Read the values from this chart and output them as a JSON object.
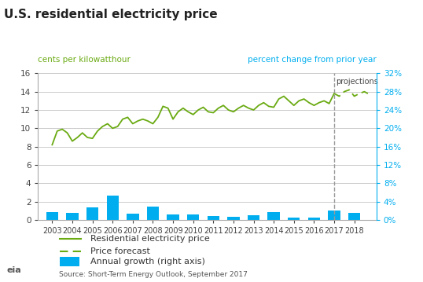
{
  "title": "U.S. residential electricity price",
  "left_ylabel": "cents per kilowatthour",
  "right_ylabel": "percent change from prior year",
  "source": "Source: Short-Term Energy Outlook, September 2017",
  "projection_label": "projections",
  "left_ylim": [
    0,
    16
  ],
  "right_ylim": [
    0,
    32
  ],
  "left_yticks": [
    0,
    2,
    4,
    6,
    8,
    10,
    12,
    14,
    16
  ],
  "right_yticks": [
    0,
    4,
    8,
    12,
    16,
    20,
    24,
    28,
    32
  ],
  "right_yticklabels": [
    "0%",
    "4%",
    "8%",
    "12%",
    "16%",
    "20%",
    "24%",
    "28%",
    "32%"
  ],
  "price_color": "#6aaa12",
  "bar_color": "#00aeef",
  "forecast_color": "#6aaa12",
  "dashed_vline_color": "#999999",
  "right_axis_color": "#00aeef",
  "left_axis_color": "#6aaa12",
  "price_x": [
    2003.0,
    2003.25,
    2003.5,
    2003.75,
    2004.0,
    2004.25,
    2004.5,
    2004.75,
    2005.0,
    2005.25,
    2005.5,
    2005.75,
    2006.0,
    2006.25,
    2006.5,
    2006.75,
    2007.0,
    2007.25,
    2007.5,
    2007.75,
    2008.0,
    2008.25,
    2008.5,
    2008.75,
    2009.0,
    2009.25,
    2009.5,
    2009.75,
    2010.0,
    2010.25,
    2010.5,
    2010.75,
    2011.0,
    2011.25,
    2011.5,
    2011.75,
    2012.0,
    2012.25,
    2012.5,
    2012.75,
    2013.0,
    2013.25,
    2013.5,
    2013.75,
    2014.0,
    2014.25,
    2014.5,
    2014.75,
    2015.0,
    2015.25,
    2015.5,
    2015.75,
    2016.0,
    2016.25,
    2016.5,
    2016.75,
    2017.0
  ],
  "price_y": [
    8.2,
    9.7,
    9.9,
    9.5,
    8.6,
    9.0,
    9.5,
    9.0,
    8.9,
    9.7,
    10.2,
    10.5,
    10.0,
    10.2,
    11.0,
    11.2,
    10.5,
    10.8,
    11.0,
    10.8,
    10.5,
    11.2,
    12.4,
    12.2,
    11.0,
    11.8,
    12.2,
    11.8,
    11.5,
    12.0,
    12.3,
    11.8,
    11.7,
    12.2,
    12.5,
    12.0,
    11.8,
    12.2,
    12.5,
    12.2,
    12.0,
    12.5,
    12.8,
    12.4,
    12.3,
    13.2,
    13.5,
    13.0,
    12.5,
    13.0,
    13.2,
    12.8,
    12.5,
    12.8,
    13.0,
    12.7,
    13.8
  ],
  "forecast_x": [
    2017.0,
    2017.25,
    2017.5,
    2017.75,
    2018.0,
    2018.25,
    2018.5,
    2018.75
  ],
  "forecast_y": [
    13.8,
    13.5,
    14.0,
    14.2,
    13.5,
    13.8,
    14.0,
    13.7
  ],
  "bar_years": [
    2003,
    2004,
    2005,
    2006,
    2007,
    2008,
    2009,
    2010,
    2011,
    2012,
    2013,
    2014,
    2015,
    2016,
    2017,
    2018
  ],
  "bar_values": [
    1.8,
    1.5,
    2.8,
    5.3,
    1.4,
    2.9,
    1.2,
    1.2,
    0.8,
    0.7,
    1.1,
    1.8,
    0.6,
    0.5,
    2.0,
    1.6
  ],
  "vline_x": 2017.0,
  "legend_items": [
    "Residential electricity price",
    "Price forecast",
    "Annual growth (right axis)"
  ],
  "background_color": "#ffffff",
  "plot_bg_color": "#ffffff",
  "legend_bg_color": "#efefef",
  "grid_color": "#cccccc"
}
